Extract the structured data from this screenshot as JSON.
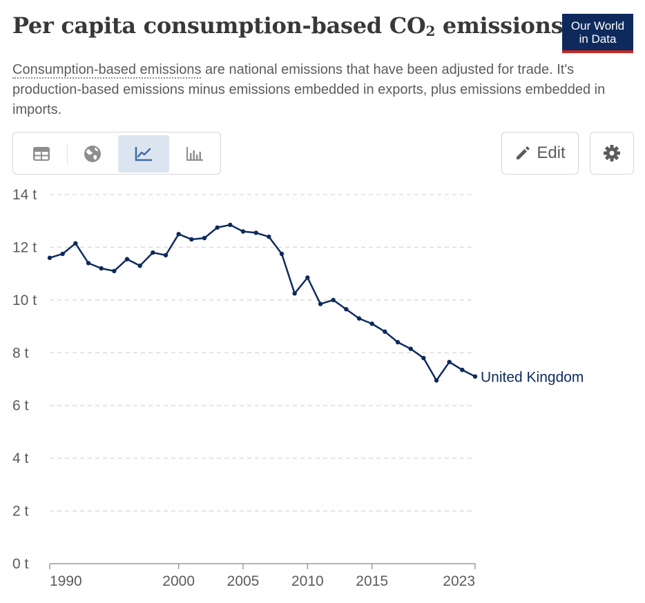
{
  "header": {
    "title_main": "Per capita consumption-based CO",
    "title_sub": "2",
    "title_tail": " emissions",
    "logo_line1": "Our World",
    "logo_line2": "in Data",
    "subtitle_term": "Consumption-based emissions",
    "subtitle_rest": " are national emissions that have been adjusted for trade. It's production-based emissions minus emissions embedded in exports, plus emissions embedded in imports."
  },
  "toolbar": {
    "tools": [
      {
        "icon": "table-icon",
        "active": false
      },
      {
        "icon": "globe-icon",
        "active": false
      },
      {
        "icon": "line-chart-icon",
        "active": true
      },
      {
        "icon": "bar-chart-icon",
        "active": false
      }
    ],
    "edit_label": "Edit",
    "settings_icon": "gear-icon"
  },
  "colors": {
    "series": "#0e2a5c",
    "grid": "#dddddd",
    "active_tab": "#dbe5f0",
    "logo_bg": "#0e2a5c",
    "logo_accent": "#ce261e"
  },
  "chart_data": {
    "type": "line",
    "title": "Per capita consumption-based CO₂ emissions",
    "xlabel": "",
    "ylabel": "",
    "ylim": [
      0,
      14
    ],
    "xlim": [
      1990,
      2023
    ],
    "y_ticks": [
      {
        "value": 0,
        "label": "0 t"
      },
      {
        "value": 2,
        "label": "2 t"
      },
      {
        "value": 4,
        "label": "4 t"
      },
      {
        "value": 6,
        "label": "6 t"
      },
      {
        "value": 8,
        "label": "8 t"
      },
      {
        "value": 10,
        "label": "10 t"
      },
      {
        "value": 12,
        "label": "12 t"
      },
      {
        "value": 14,
        "label": "14 t"
      }
    ],
    "x_ticks": [
      {
        "value": 1990,
        "label": "1990"
      },
      {
        "value": 2000,
        "label": "2000"
      },
      {
        "value": 2005,
        "label": "2005"
      },
      {
        "value": 2010,
        "label": "2010"
      },
      {
        "value": 2015,
        "label": "2015"
      },
      {
        "value": 2023,
        "label": "2023"
      }
    ],
    "grid": true,
    "series": [
      {
        "name": "United Kingdom",
        "x": [
          1990,
          1991,
          1992,
          1993,
          1994,
          1995,
          1996,
          1997,
          1998,
          1999,
          2000,
          2001,
          2002,
          2003,
          2004,
          2005,
          2006,
          2007,
          2008,
          2009,
          2010,
          2011,
          2012,
          2013,
          2014,
          2015,
          2016,
          2017,
          2018,
          2019,
          2020,
          2021,
          2022,
          2023
        ],
        "values": [
          11.6,
          11.75,
          12.15,
          11.4,
          11.2,
          11.1,
          11.55,
          11.3,
          11.8,
          11.7,
          12.5,
          12.3,
          12.35,
          12.75,
          12.85,
          12.6,
          12.55,
          12.4,
          11.75,
          10.25,
          10.85,
          9.85,
          10.0,
          9.65,
          9.3,
          9.1,
          8.8,
          8.4,
          8.15,
          7.8,
          6.95,
          7.65,
          7.35,
          7.1
        ]
      }
    ]
  }
}
